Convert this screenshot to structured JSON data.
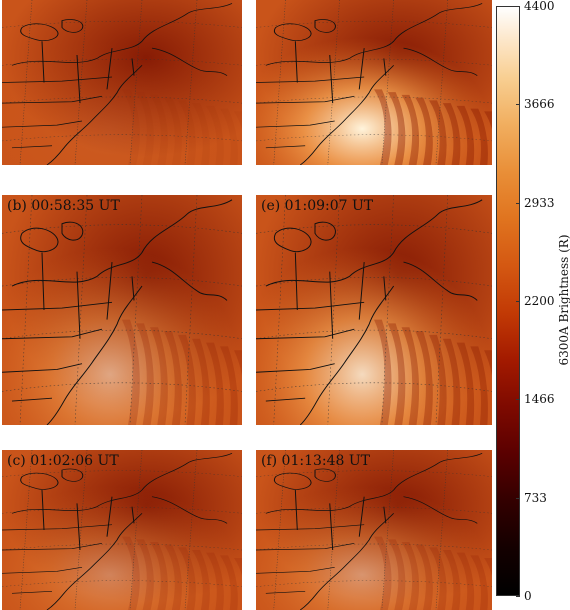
{
  "panels": [
    {
      "id": "a",
      "label": "",
      "glow": 0.05
    },
    {
      "id": "d",
      "label": "",
      "glow": 1.0
    },
    {
      "id": "b",
      "label": "(b) 00:58:35 UT",
      "glow": 0.55
    },
    {
      "id": "e",
      "label": "(e)  01:09:07 UT",
      "glow": 0.85
    },
    {
      "id": "c",
      "label": "(c) 01:02:06 UT",
      "glow": 0.35
    },
    {
      "id": "f",
      "label": "(f)  01:13:48 UT",
      "glow": 0.45
    }
  ],
  "colorbar": {
    "title": "6300A Brightness (R)",
    "ticks": [
      "4400",
      "3666",
      "2933",
      "2200",
      "1466",
      "733",
      "0"
    ],
    "min": 0,
    "max": 4400
  },
  "colors": {
    "background_orange": "#c9541a",
    "dark_red": "#7a1000",
    "bright_glow": "#fff4dc",
    "coastline": "#111111",
    "grid": "#333333"
  }
}
